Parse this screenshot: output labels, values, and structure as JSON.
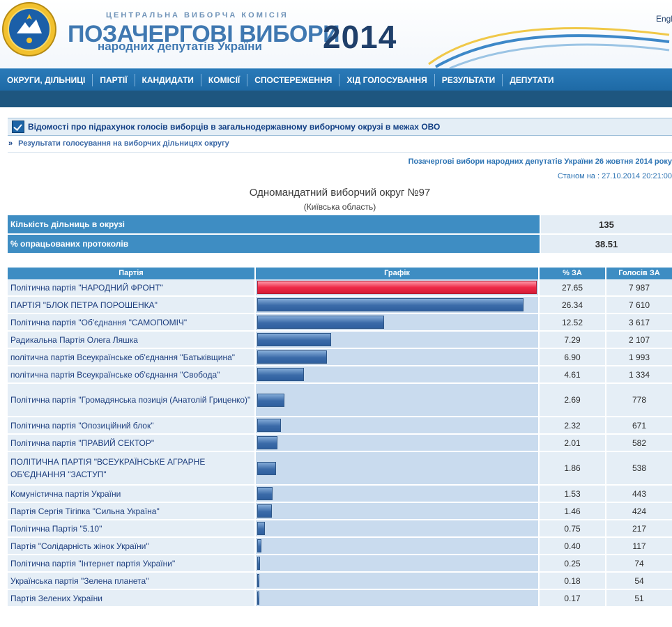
{
  "header": {
    "commission": "ЦЕНТРАЛЬНА ВИБОРЧА КОМІСІЯ",
    "title": "ПОЗАЧЕРГОВІ ВИБОРИ",
    "subtitle": "народних депутатів України",
    "year": "2014",
    "lang_link": "English"
  },
  "nav": [
    {
      "label": "ОКРУГИ, ДІЛЬНИЦІ"
    },
    {
      "label": "ПАРТІЇ"
    },
    {
      "label": "КАНДИДАТИ"
    },
    {
      "label": "КОМІСІЇ"
    },
    {
      "label": "СПОСТЕРЕЖЕННЯ"
    },
    {
      "label": "ХІД ГОЛОСУВАННЯ"
    },
    {
      "label": "РЕЗУЛЬТАТИ"
    },
    {
      "label": "ДЕПУТАТИ"
    }
  ],
  "section_title": "Відомості про підрахунок голосів виборців в загальнодержавному виборчому окрузі в межах ОВО",
  "breadcrumb": "Результати голосування на виборчих дільницях округу",
  "election_title": "Позачергові вибори народних депутатів України 26 жовтня 2014 року",
  "status": "Станом на : 27.10.2014 20:21:00",
  "district": {
    "name": "Одномандатний виборчий округ №97",
    "region": "(Київська область)"
  },
  "summary": [
    {
      "label": "Кількість дільниць в окрузі",
      "value": "135"
    },
    {
      "label": "% опрацьованих протоколів",
      "value": "38.51"
    }
  ],
  "table_headers": {
    "party": "Партія",
    "graph": "Графік",
    "pct": "% ЗА",
    "votes": "Голосів ЗА"
  },
  "results": [
    {
      "party": "Політична партія \"НАРОДНИЙ ФРОНТ\"",
      "pct": 27.65,
      "pct_label": "27.65",
      "votes": "7 987"
    },
    {
      "party": "ПАРТІЯ \"БЛОК ПЕТРА ПОРОШЕНКА\"",
      "pct": 26.34,
      "pct_label": "26.34",
      "votes": "7 610"
    },
    {
      "party": "Політична партія \"Об'єднання \"САМОПОМІЧ\"",
      "pct": 12.52,
      "pct_label": "12.52",
      "votes": "3 617"
    },
    {
      "party": "Радикальна Партія Олега Ляшка",
      "pct": 7.29,
      "pct_label": "7.29",
      "votes": "2 107"
    },
    {
      "party": "політична партія Всеукраїнське об'єднання \"Батьківщина\"",
      "pct": 6.9,
      "pct_label": "6.90",
      "votes": "1 993"
    },
    {
      "party": "політична партія Всеукраїнське об'єднання \"Свобода\"",
      "pct": 4.61,
      "pct_label": "4.61",
      "votes": "1 334"
    },
    {
      "party": "Політична партія \"Громадянська позиція (Анатолій Гриценко)\"",
      "pct": 2.69,
      "pct_label": "2.69",
      "votes": "778",
      "tall": true
    },
    {
      "party": "Політична партія \"Опозиційний блок\"",
      "pct": 2.32,
      "pct_label": "2.32",
      "votes": "671"
    },
    {
      "party": "Політична партія \"ПРАВИЙ СЕКТОР\"",
      "pct": 2.01,
      "pct_label": "2.01",
      "votes": "582"
    },
    {
      "party": "ПОЛІТИЧНА ПАРТІЯ \"ВСЕУКРАЇНСЬКЕ АГРАРНЕ ОБ'ЄДНАННЯ \"ЗАСТУП\"",
      "pct": 1.86,
      "pct_label": "1.86",
      "votes": "538",
      "tall": true
    },
    {
      "party": "Комуністична партія України",
      "pct": 1.53,
      "pct_label": "1.53",
      "votes": "443"
    },
    {
      "party": "Партія Сергія Тігіпка \"Сильна Україна\"",
      "pct": 1.46,
      "pct_label": "1.46",
      "votes": "424"
    },
    {
      "party": "Політична Партія \"5.10\"",
      "pct": 0.75,
      "pct_label": "0.75",
      "votes": "217"
    },
    {
      "party": "Партія \"Солідарність жінок України\"",
      "pct": 0.4,
      "pct_label": "0.40",
      "votes": "117"
    },
    {
      "party": "Політична партія \"Інтернет партія України\"",
      "pct": 0.25,
      "pct_label": "0.25",
      "votes": "74"
    },
    {
      "party": "Українська партія \"Зелена планета\"",
      "pct": 0.18,
      "pct_label": "0.18",
      "votes": "54"
    },
    {
      "party": "Партія Зелених України",
      "pct": 0.17,
      "pct_label": "0.17",
      "votes": "51"
    }
  ]
}
